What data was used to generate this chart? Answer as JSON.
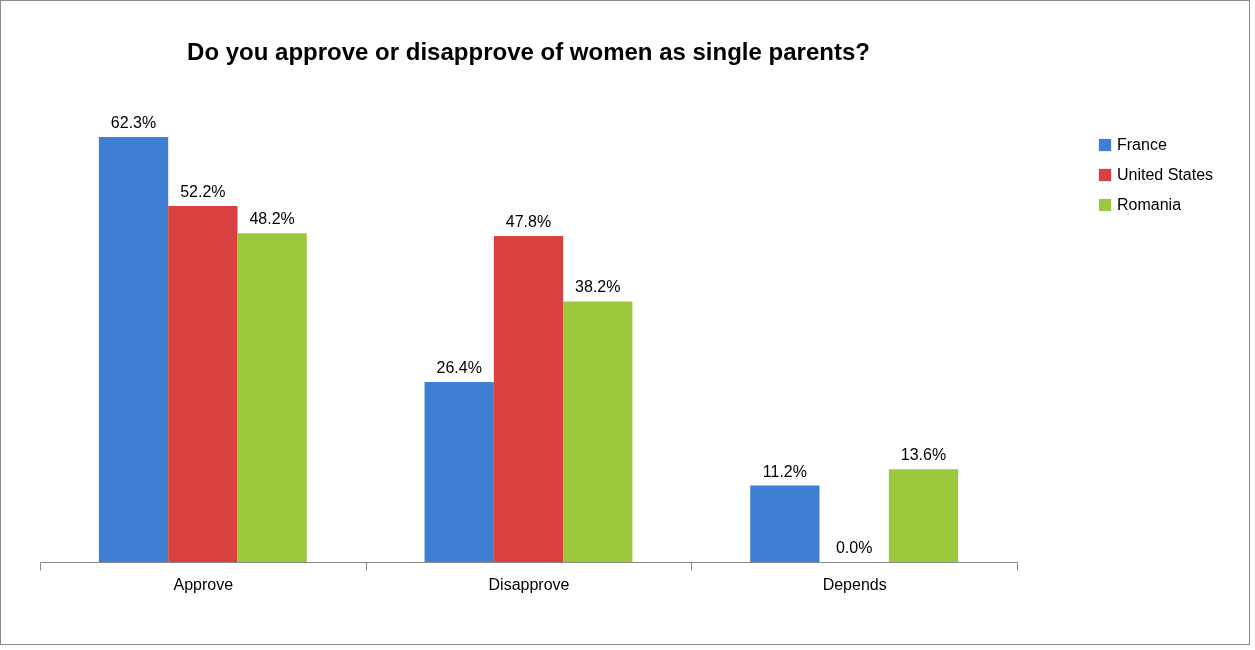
{
  "chart_data": {
    "type": "bar",
    "title": "Do you approve or disapprove of women as single parents?",
    "categories": [
      "Approve",
      "Disapprove",
      "Depends"
    ],
    "series": [
      {
        "name": "France",
        "color": "#3f7fd3",
        "values": [
          62.3,
          26.4,
          11.2
        ],
        "value_labels": [
          "62.3%",
          "26.4%",
          "11.2%"
        ]
      },
      {
        "name": "United States",
        "color": "#d94040",
        "values": [
          52.2,
          47.8,
          0.0
        ],
        "value_labels": [
          "52.2%",
          "47.8%",
          "0.0%"
        ]
      },
      {
        "name": "Romania",
        "color": "#9cc83e",
        "values": [
          48.2,
          38.2,
          13.6
        ],
        "value_labels": [
          "48.2%",
          "38.2%",
          "13.6%"
        ]
      }
    ],
    "legend": "right",
    "grid": false
  }
}
